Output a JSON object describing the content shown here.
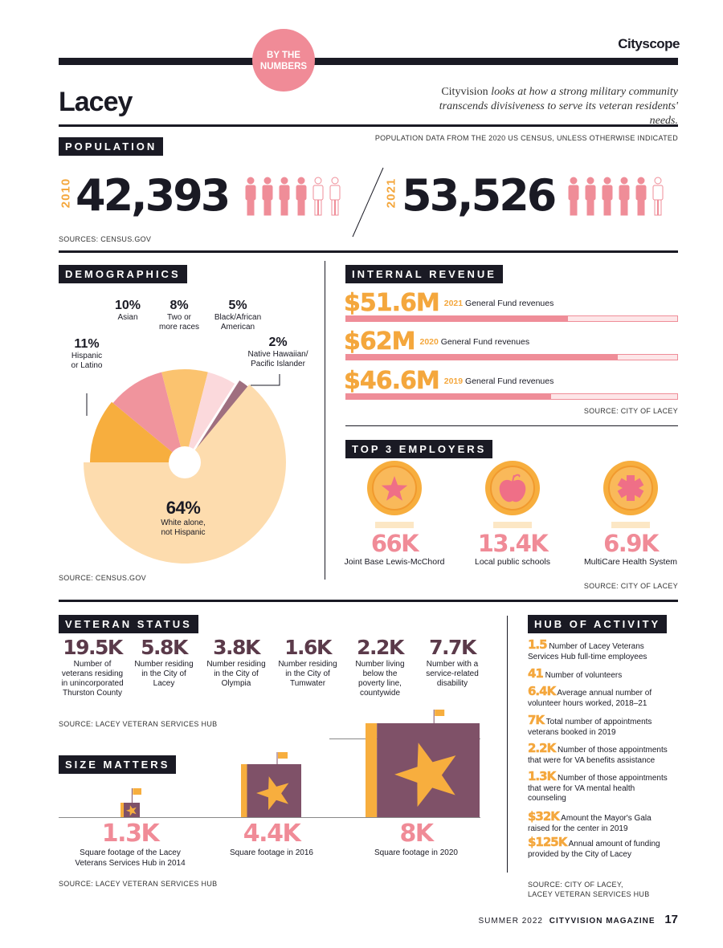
{
  "header": {
    "brand": "Cityscope",
    "badge_line1": "BY THE",
    "badge_line2": "NUMBERS",
    "title": "Lacey",
    "intro_1": "Cityvision",
    "intro_2": " looks at how a strong military community",
    "intro_3": "transcends divisiveness to serve its veteran residents' needs."
  },
  "population": {
    "tag": "POPULATION",
    "note": "POPULATION DATA FROM THE 2020 US CENSUS, UNLESS OTHERWISE INDICATED",
    "year1": "2010",
    "value1": "42,393",
    "year2": "2021",
    "value2": "53,526",
    "source": "SOURCES: CENSUS.GOV"
  },
  "demographics": {
    "tag": "DEMOGRAPHICS",
    "source": "SOURCE: CENSUS.GOV",
    "slices": [
      {
        "pct": "11%",
        "label1": "Hispanic",
        "label2": "or Latino",
        "value": 11,
        "color": "#f7ae3e"
      },
      {
        "pct": "10%",
        "label1": "Asian",
        "label2": "",
        "value": 10,
        "color": "#f0949d"
      },
      {
        "pct": "8%",
        "label1": "Two or",
        "label2": "more races",
        "value": 8,
        "color": "#fbc36f"
      },
      {
        "pct": "5%",
        "label1": "Black/African",
        "label2": "American",
        "value": 5,
        "color": "#fbd9dc"
      },
      {
        "pct": "2%",
        "label1": "Native Hawaiian/",
        "label2": "Pacific Islander",
        "value": 2,
        "color": "#9f6f7f"
      },
      {
        "pct": "64%",
        "label1": "White alone,",
        "label2": "not Hispanic",
        "value": 64,
        "color": "#fddcae"
      }
    ]
  },
  "revenue": {
    "tag": "INTERNAL REVENUE",
    "items": [
      {
        "amount": "$51.6M",
        "year": "2021",
        "label": " General Fund revenues",
        "fraction": 0.67
      },
      {
        "amount": "$62M",
        "year": "2020",
        "label": " General Fund revenues",
        "fraction": 0.82
      },
      {
        "amount": "$46.6M",
        "year": "2019",
        "label": " General Fund revenues",
        "fraction": 0.62
      }
    ],
    "source": "SOURCE: CITY OF LACEY"
  },
  "employers": {
    "tag": "TOP 3 EMPLOYERS",
    "items": [
      {
        "value": "66K",
        "label": "Joint Base Lewis-McChord",
        "icon": "star-icon"
      },
      {
        "value": "13.4K",
        "label": "Local public schools",
        "icon": "apple-icon"
      },
      {
        "value": "6.9K",
        "label": "MultiCare Health System",
        "icon": "medical-cross-icon"
      }
    ],
    "source": "SOURCE: CITY OF LACEY"
  },
  "veterans": {
    "tag": "VETERAN STATUS",
    "items": [
      {
        "value": "19.5K",
        "l1": "Number of",
        "l2": "veterans residing",
        "l3": "in unincorporated",
        "l4": "Thurston County"
      },
      {
        "value": "5.8K",
        "l1": "Number residing",
        "l2": "in the City of",
        "l3": "Lacey",
        "l4": ""
      },
      {
        "value": "3.8K",
        "l1": "Number residing",
        "l2": "in the City of",
        "l3": "Olympia",
        "l4": ""
      },
      {
        "value": "1.6K",
        "l1": "Number residing",
        "l2": "in the City of",
        "l3": "Tumwater",
        "l4": ""
      },
      {
        "value": "2.2K",
        "l1": "Number living",
        "l2": "below the",
        "l3": "poverty line,",
        "l4": "countywide"
      },
      {
        "value": "7.7K",
        "l1": "Number with a",
        "l2": "service-related",
        "l3": "disability",
        "l4": ""
      }
    ],
    "source": "SOURCE: LACEY VETERAN SERVICES HUB"
  },
  "size": {
    "tag": "SIZE MATTERS",
    "items": [
      {
        "value": "1.3K",
        "l1": "Square footage of the Lacey",
        "l2": "Veterans Services Hub in 2014"
      },
      {
        "value": "4.4K",
        "l1": "Square footage in 2016",
        "l2": ""
      },
      {
        "value": "8K",
        "l1": "Square footage in 2020",
        "l2": ""
      }
    ],
    "source": "SOURCE: LACEY VETERAN SERVICES HUB"
  },
  "hub": {
    "tag": "HUB OF ACTIVITY",
    "items": [
      {
        "value": "1.5",
        "l1": " Number of Lacey Veterans",
        "l2": "Services Hub full-time employees",
        "l3": ""
      },
      {
        "value": "41",
        "l1": " Number of volunteers",
        "l2": "",
        "l3": ""
      },
      {
        "value": "6.4K",
        "l1": " Average annual number of",
        "l2": "volunteer hours worked, 2018–21",
        "l3": ""
      },
      {
        "value": "7K",
        "l1": " Total number of appointments",
        "l2": "veterans booked in 2019",
        "l3": ""
      },
      {
        "value": "2.2K",
        "l1": " Number of those appointments",
        "l2": "that were for VA benefits assistance",
        "l3": ""
      },
      {
        "value": "1.3K",
        "l1": " Number of those appointments",
        "l2": "that were for VA mental health",
        "l3": "counseling"
      },
      {
        "value": "$32K",
        "l1": " Amount the Mayor's Gala",
        "l2": "raised for the center in 2019",
        "l3": ""
      },
      {
        "value": "$125K",
        "l1": " Annual amount of funding",
        "l2": "provided by the City of Lacey",
        "l3": ""
      }
    ],
    "source1": "SOURCE: CITY OF LACEY,",
    "source2": "LACEY VETERAN SERVICES HUB"
  },
  "footer": {
    "issue": "SUMMER 2022",
    "magazine": "CITYVISION MAGAZINE",
    "page": "17"
  }
}
